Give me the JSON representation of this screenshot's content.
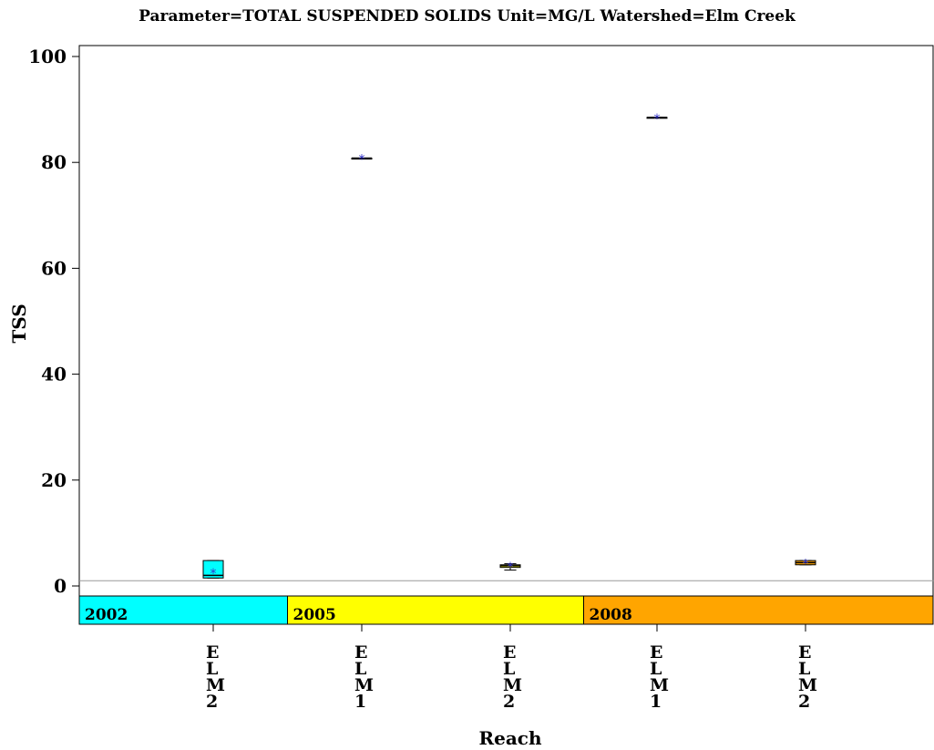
{
  "title": "Parameter=TOTAL SUSPENDED SOLIDS Unit=MG/L Watershed=Elm Creek",
  "chart_data": {
    "type": "box",
    "title": "Parameter=TOTAL SUSPENDED SOLIDS Unit=MG/L Watershed=Elm Creek",
    "xlabel": "Reach",
    "ylabel": "TSS",
    "ylim": [
      -2,
      102
    ],
    "yticks": [
      0,
      20,
      40,
      60,
      80,
      100
    ],
    "reference_line": 1,
    "year_bands": [
      {
        "label": "2002",
        "color": "#00ffff",
        "from_index": 0,
        "to_index": 0
      },
      {
        "label": "2005",
        "color": "#ffff00",
        "from_index": 1,
        "to_index": 2
      },
      {
        "label": "2008",
        "color": "#ffa500",
        "from_index": 3,
        "to_index": 4
      }
    ],
    "categories": [
      "ELM2",
      "ELM1",
      "ELM2",
      "ELM1",
      "ELM2"
    ],
    "boxes": [
      {
        "reach": "ELM2",
        "year": "2002",
        "min": 1.5,
        "q1": 1.5,
        "median": 2.0,
        "q3": 4.8,
        "max": 4.8,
        "mean": 2.6,
        "color": "#00ffff"
      },
      {
        "reach": "ELM1",
        "year": "2005",
        "min": 80.8,
        "q1": 80.8,
        "median": 80.8,
        "q3": 80.8,
        "max": 80.8,
        "mean": 80.8,
        "color": "#ffff00"
      },
      {
        "reach": "ELM2",
        "year": "2005",
        "min": 3.0,
        "q1": 3.5,
        "median": 3.8,
        "q3": 4.0,
        "max": 4.2,
        "mean": 3.8,
        "color": "#ffff00"
      },
      {
        "reach": "ELM1",
        "year": "2008",
        "min": 88.5,
        "q1": 88.5,
        "median": 88.5,
        "q3": 88.5,
        "max": 88.5,
        "mean": 88.5,
        "color": "#ffa500"
      },
      {
        "reach": "ELM2",
        "year": "2008",
        "min": 4.0,
        "q1": 4.0,
        "median": 4.4,
        "q3": 4.8,
        "max": 4.8,
        "mean": 4.4,
        "color": "#ffa500"
      }
    ],
    "colors": {
      "mean_marker": "#3333cc",
      "reference_line": "#999999",
      "axis": "#000000"
    }
  }
}
